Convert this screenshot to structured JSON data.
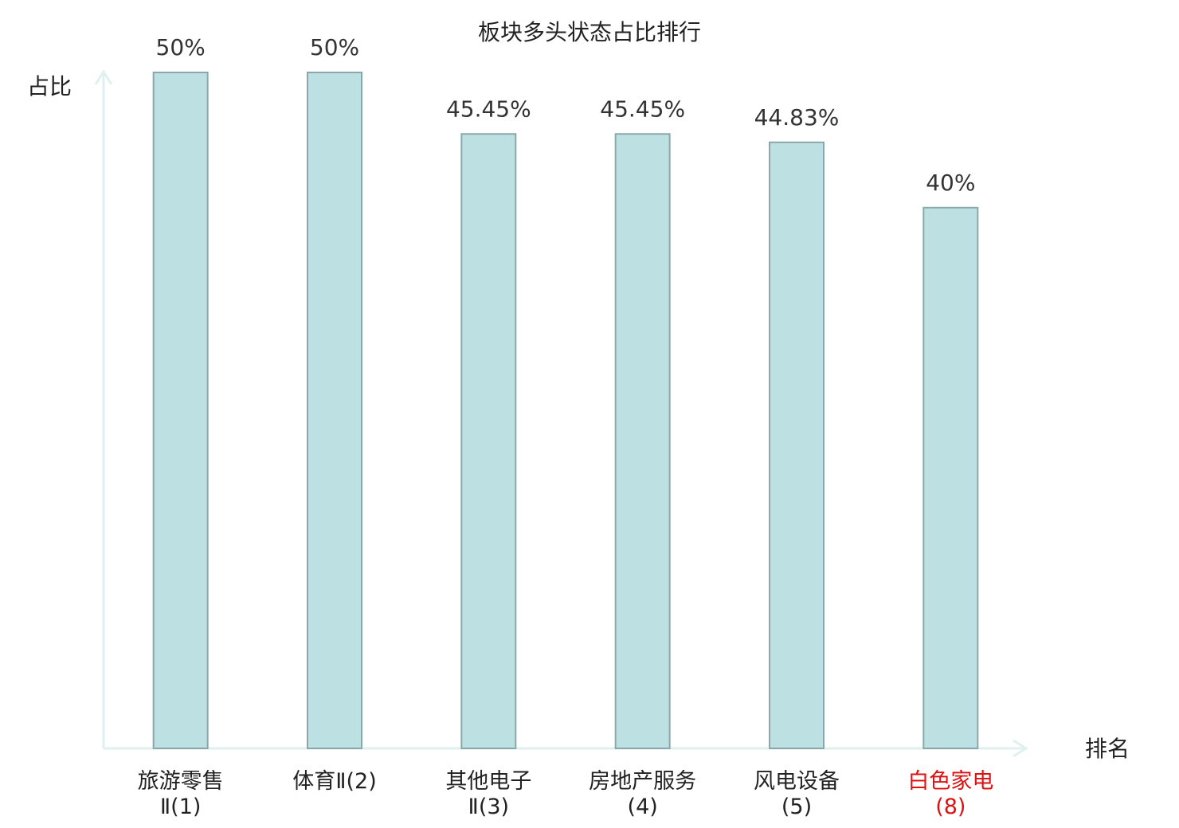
{
  "chart_data": {
    "type": "bar",
    "title": "板块多头状态占比排行",
    "y_label": "占比",
    "x_label": "排名",
    "categories": [
      "旅游零售Ⅱ(1)",
      "体育Ⅱ(2)",
      "其他电子Ⅱ(3)",
      "房地产服务(4)",
      "风电设备(5)",
      "白色家电(8)"
    ],
    "values": [
      50,
      50,
      45.45,
      45.45,
      44.83,
      40
    ],
    "value_labels": [
      "50%",
      "50%",
      "45.45%",
      "45.45%",
      "44.83%",
      "40%"
    ],
    "color": "#bde1e3",
    "edge_color": "#8aa8aa",
    "label_colors": [
      "#222222",
      "#222222",
      "#222222",
      "#222222",
      "#222222",
      "#e01010"
    ],
    "ylim": [
      0,
      50
    ]
  }
}
